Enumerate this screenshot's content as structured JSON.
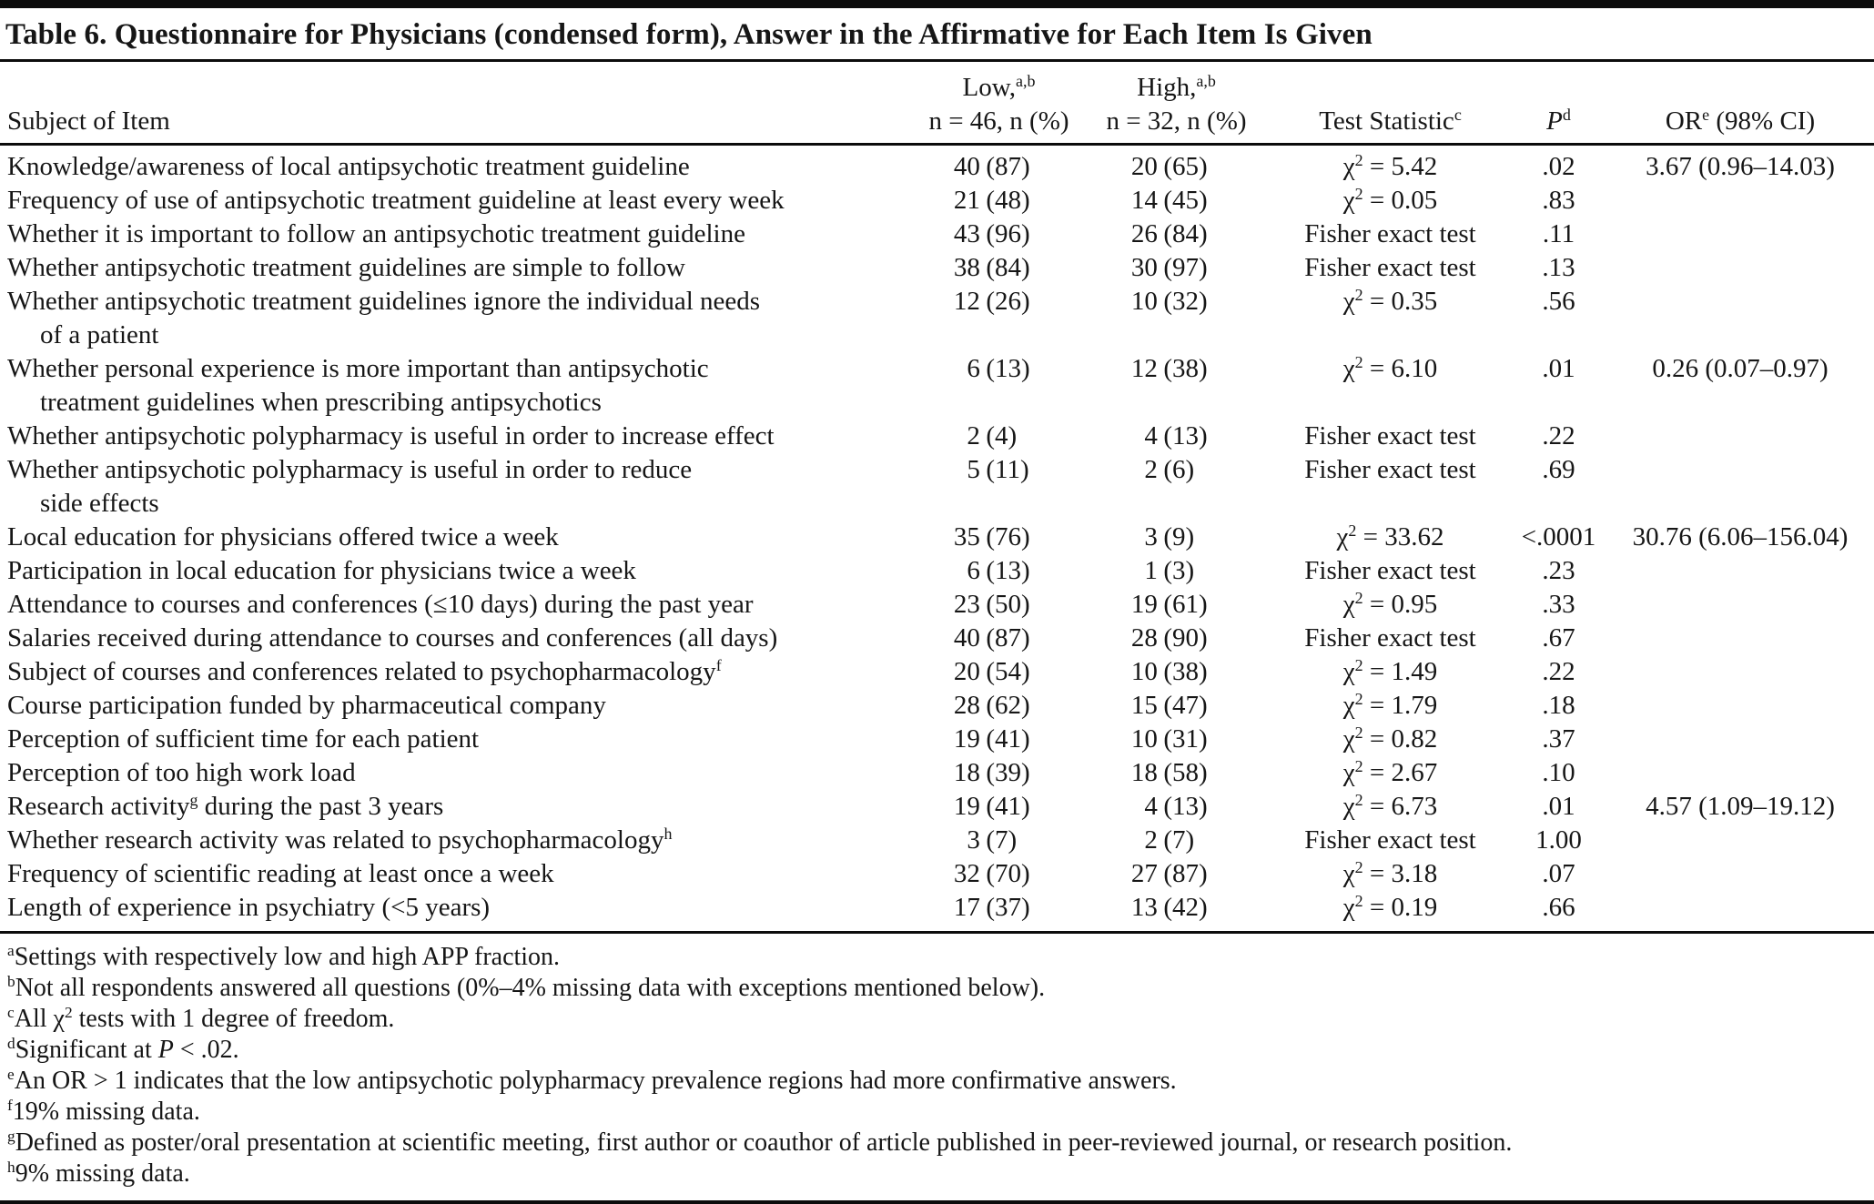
{
  "title": "Table 6. Questionnaire for Physicians (condensed form), Answer in the Affirmative for Each Item Is Given",
  "table": {
    "header": {
      "subject": "Subject of Item",
      "low_line1": "Low,^{a,b}",
      "low_line2": "n = 46, n (%)",
      "high_line1": "High,^{a,b}",
      "high_line2": "n = 32, n (%)",
      "test": "Test Statistic^{c}",
      "p": "~{P}^{d}",
      "or": "OR^{e} (98% CI)"
    },
    "rows": [
      {
        "subject": [
          "Knowledge/awareness of local antipsychotic treatment guideline"
        ],
        "low": "40 (87)",
        "high": "20 (65)",
        "test": "χ^{2} = 5.42",
        "p": ".02",
        "or": "3.67 (0.96–14.03)"
      },
      {
        "subject": [
          "Frequency of use of antipsychotic treatment guideline at least every week"
        ],
        "low": "21 (48)",
        "high": "14 (45)",
        "test": "χ^{2} = 0.05",
        "p": ".83",
        "or": ""
      },
      {
        "subject": [
          "Whether it is important to follow an antipsychotic treatment guideline"
        ],
        "low": "43 (96)",
        "high": "26 (84)",
        "test": "Fisher exact test",
        "p": ".11",
        "or": ""
      },
      {
        "subject": [
          "Whether antipsychotic treatment guidelines are simple to follow"
        ],
        "low": "38 (84)",
        "high": "30 (97)",
        "test": "Fisher exact test",
        "p": ".13",
        "or": ""
      },
      {
        "subject": [
          "Whether antipsychotic treatment guidelines ignore the individual needs",
          "of a patient"
        ],
        "low": "12 (26)",
        "high": "10 (32)",
        "test": "χ^{2} = 0.35",
        "p": ".56",
        "or": ""
      },
      {
        "subject": [
          "Whether personal experience is more important than antipsychotic",
          "treatment guidelines when prescribing antipsychotics"
        ],
        "low": "6 (13)",
        "high": "12(38)",
        "test": "χ^{2} = 6.10",
        "p": ".01",
        "or": "0.26 (0.07–0.97)"
      },
      {
        "subject": [
          "Whether antipsychotic polypharmacy is useful in order to increase effect"
        ],
        "low": "2 (4)",
        "high": "4 (13)",
        "test": "Fisher exact test",
        "p": ".22",
        "or": ""
      },
      {
        "subject": [
          "Whether antipsychotic polypharmacy is useful in order to reduce",
          "side effects"
        ],
        "low": "5 (11)",
        "high": "2 (6)",
        "test": "Fisher exact test",
        "p": ".69",
        "or": ""
      },
      {
        "subject": [
          "Local education for physicians offered twice a week"
        ],
        "low": "35 (76)",
        "high": "3 (9)",
        "test": "χ^{2} = 33.62",
        "p": "<.0001",
        "or": "30.76 (6.06–156.04)"
      },
      {
        "subject": [
          "Participation in local education for physicians twice a week"
        ],
        "low": "6 (13)",
        "high": "1 (3)",
        "test": "Fisher exact test",
        "p": ".23",
        "or": ""
      },
      {
        "subject": [
          "Attendance to courses and conferences (≤10 days) during the past year"
        ],
        "low": "23 (50)",
        "high": "19 (61)",
        "test": "χ^{2} = 0.95",
        "p": ".33",
        "or": ""
      },
      {
        "subject": [
          "Salaries received during attendance to courses and conferences (all days)"
        ],
        "low": "40 (87)",
        "high": "28 (90)",
        "test": "Fisher exact test",
        "p": ".67",
        "or": ""
      },
      {
        "subject": [
          "Subject of courses and conferences related to psychopharmacology^{f}"
        ],
        "low": "20 (54)",
        "high": "10 (38)",
        "test": "χ^{2} = 1.49",
        "p": ".22",
        "or": ""
      },
      {
        "subject": [
          "Course participation funded by pharmaceutical company"
        ],
        "low": "28 (62)",
        "high": "15 (47)",
        "test": "χ^{2} = 1.79",
        "p": ".18",
        "or": ""
      },
      {
        "subject": [
          "Perception of sufficient time for each patient"
        ],
        "low": "19 (41)",
        "high": "10 (31)",
        "test": "χ^{2} = 0.82",
        "p": ".37",
        "or": ""
      },
      {
        "subject": [
          "Perception of too high work load"
        ],
        "low": "18 (39)",
        "high": "18 (58)",
        "test": "χ^{2} = 2.67",
        "p": ".10",
        "or": ""
      },
      {
        "subject": [
          "Research activity^{g} during the past 3 years"
        ],
        "low": "19 (41)",
        "high": "4 (13)",
        "test": "χ^{2} = 6.73",
        "p": ".01",
        "or": "4.57 (1.09–19.12)"
      },
      {
        "subject": [
          "Whether research activity was related to psychopharmacology^{h}"
        ],
        "low": "3 (7)",
        "high": "2 (7)",
        "test": "Fisher exact test",
        "p": "1.00",
        "or": ""
      },
      {
        "subject": [
          "Frequency of scientific reading at least once a week"
        ],
        "low": "32 (70)",
        "high": "27(87)",
        "test": "χ^{2} = 3.18",
        "p": ".07",
        "or": ""
      },
      {
        "subject": [
          "Length of experience in psychiatry (<5 years)"
        ],
        "low": "17 (37)",
        "high": "13 (42)",
        "test": "χ^{2} = 0.19",
        "p": ".66",
        "or": ""
      }
    ]
  },
  "footnotes": [
    {
      "marker": "a",
      "text": "Settings with respectively low and high APP fraction."
    },
    {
      "marker": "b",
      "text": "Not all respondents answered all questions (0%–4% missing data with exceptions mentioned below)."
    },
    {
      "marker": "c",
      "text": "All χ^{2} tests with 1 degree of freedom."
    },
    {
      "marker": "d",
      "text": "Significant at ~{P} < .02."
    },
    {
      "marker": "e",
      "text": "An OR > 1 indicates that the low antipsychotic polypharmacy prevalence regions had more confirmative answers."
    },
    {
      "marker": "f",
      "text": "19% missing data."
    },
    {
      "marker": "g",
      "text": "Defined as poster/oral presentation at scientific meeting, first author or coauthor of article published in peer-reviewed journal, or research position."
    },
    {
      "marker": "h",
      "text": "9% missing data."
    }
  ]
}
